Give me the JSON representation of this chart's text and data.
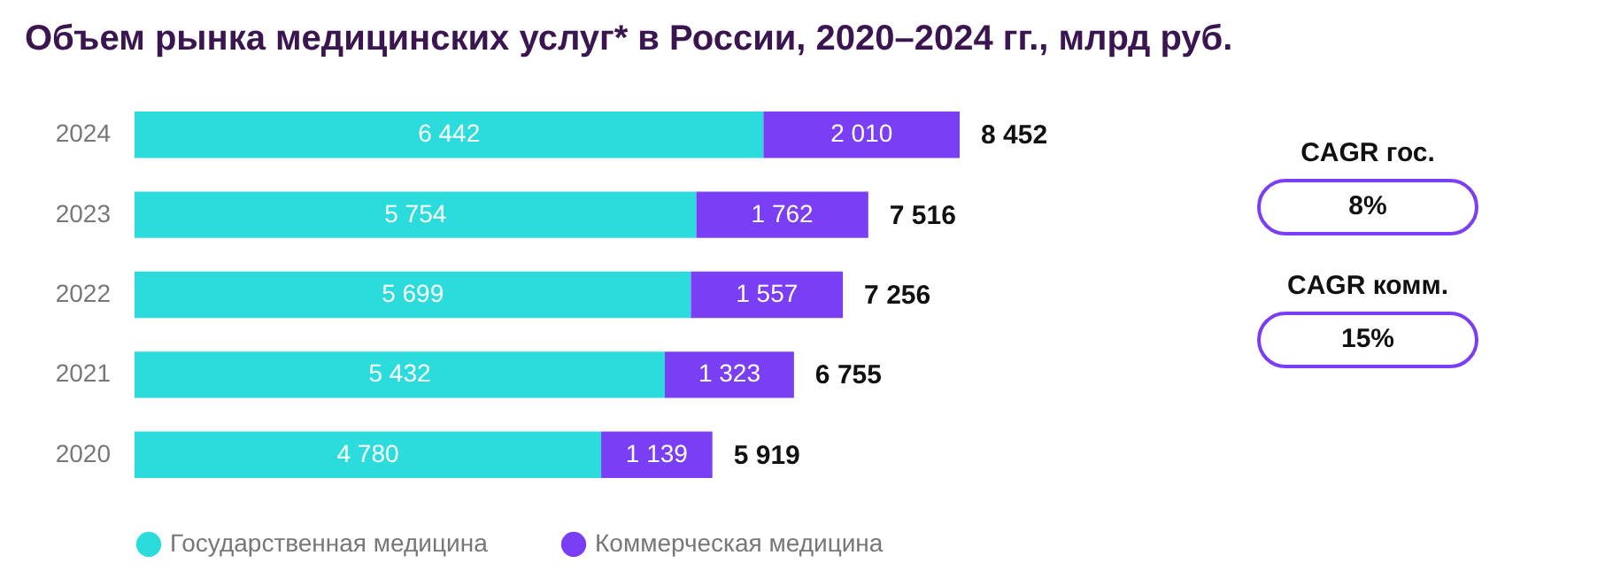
{
  "chart_data": {
    "type": "bar",
    "orientation": "horizontal",
    "stacked": true,
    "title": "Объем рынка медицинских услуг* в России, 2020–2024 гг., млрд руб.",
    "categories": [
      "2024",
      "2023",
      "2022",
      "2021",
      "2020"
    ],
    "series": [
      {
        "name": "Государственная медицина",
        "color": "#2cdcdc",
        "values": [
          6442,
          5754,
          5699,
          5432,
          4780
        ],
        "value_labels": [
          "6 442",
          "5 754",
          "5 699",
          "5 432",
          "4 780"
        ]
      },
      {
        "name": "Коммерческая медицина",
        "color": "#7a3ff5",
        "values": [
          2010,
          1762,
          1557,
          1323,
          1139
        ],
        "value_labels": [
          "2 010",
          "1 762",
          "1 557",
          "1 323",
          "1 139"
        ]
      }
    ],
    "totals": [
      "8 452",
      "7 516",
      "7 256",
      "6 755",
      "5 919"
    ],
    "legend": "bottom",
    "annotations": [
      "CAGR гос.",
      "8%",
      "CAGR комм.",
      "15%"
    ]
  }
}
